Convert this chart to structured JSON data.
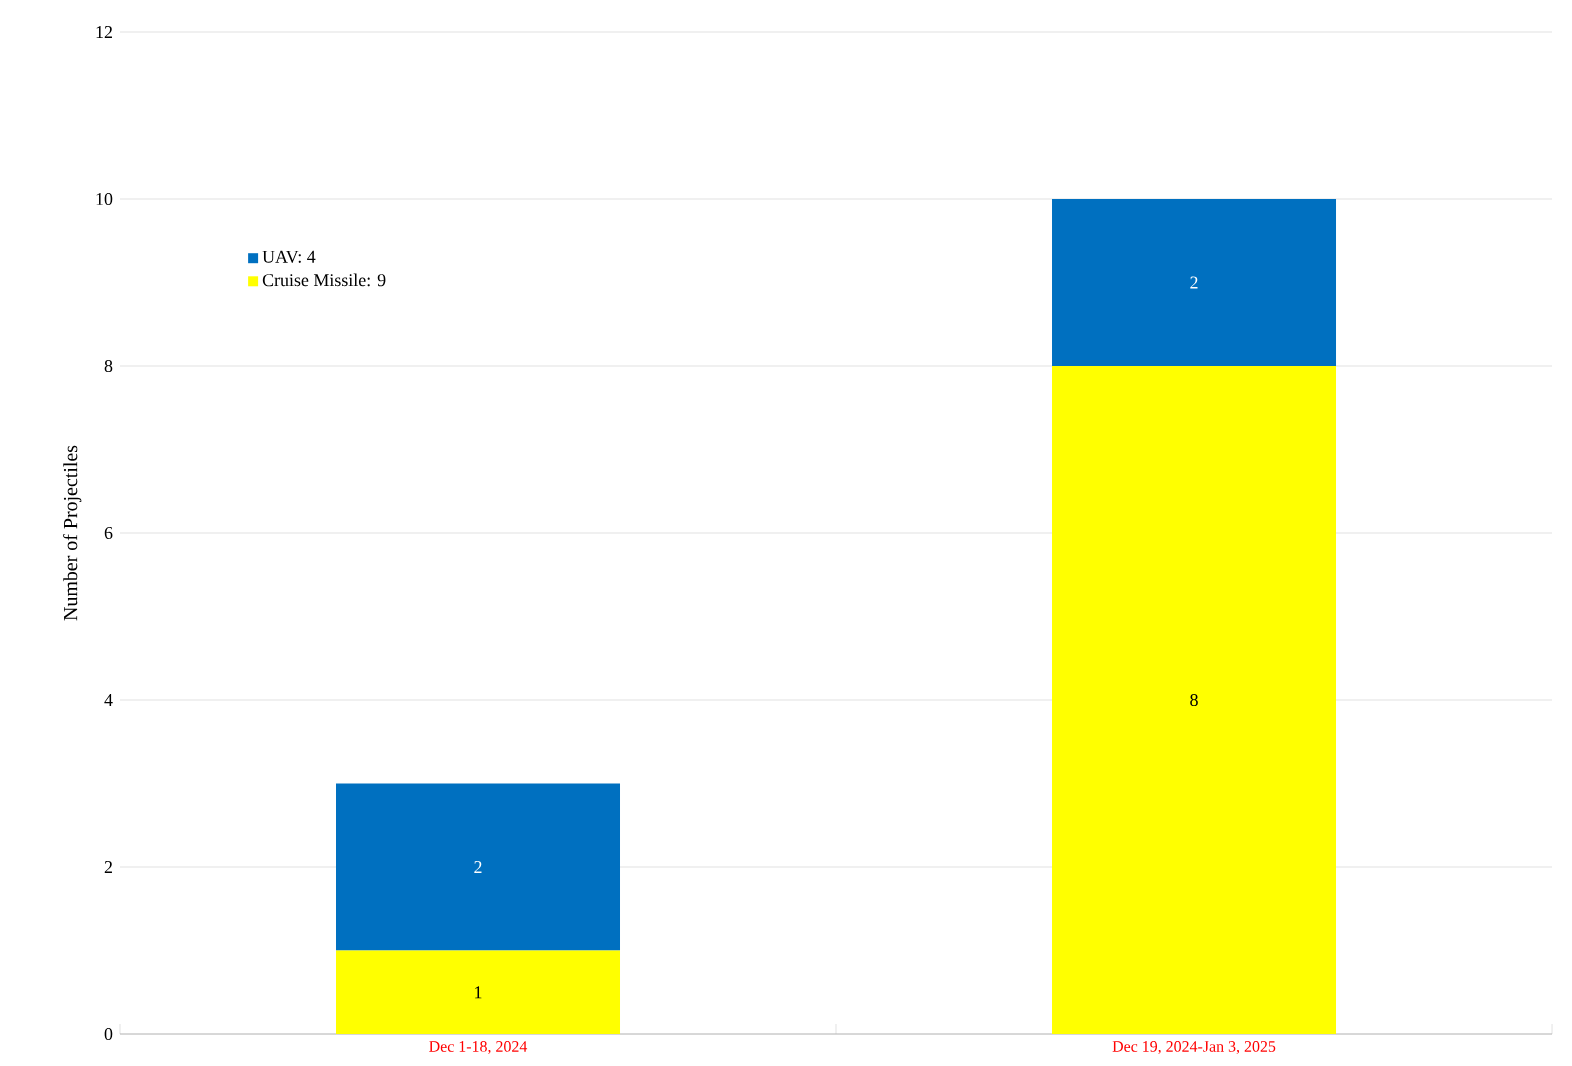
{
  "chart_data": {
    "type": "bar",
    "stacked": true,
    "ylabel": "Number of Projectiles",
    "categories": [
      "Dec 1-18, 2024",
      "Dec 19, 2024-Jan 3, 2025"
    ],
    "series": [
      {
        "name": "Cruise Missile: 9",
        "color": "#ffff00",
        "values": [
          1,
          8
        ]
      },
      {
        "name": "UAV: 4",
        "color": "#0070c0",
        "values": [
          2,
          2
        ]
      }
    ],
    "ylim": [
      0,
      12
    ],
    "yticks": [
      0,
      2,
      4,
      6,
      8,
      10,
      12
    ],
    "grid": "y",
    "legend": "top left",
    "data_labels": true
  }
}
